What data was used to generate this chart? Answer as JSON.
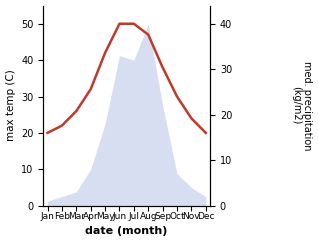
{
  "months": [
    "Jan",
    "Feb",
    "Mar",
    "Apr",
    "May",
    "Jun",
    "Jul",
    "Aug",
    "Sep",
    "Oct",
    "Nov",
    "Dec"
  ],
  "temperature": [
    20,
    22,
    26,
    32,
    42,
    50,
    50,
    47,
    38,
    30,
    24,
    20
  ],
  "precipitation_kg": [
    1,
    2,
    3,
    8,
    18,
    33,
    32,
    40,
    22,
    7,
    4,
    2
  ],
  "temp_color": "#c0392b",
  "precip_fill_color": "#b8c4e8",
  "temp_ylim": [
    0,
    55
  ],
  "precip_ylim": [
    0,
    44
  ],
  "temp_yticks": [
    0,
    10,
    20,
    30,
    40,
    50
  ],
  "precip_yticks": [
    0,
    10,
    20,
    30,
    40
  ],
  "ylabel_left": "max temp (C)",
  "ylabel_right": "med. precipitation\n(kg/m2)",
  "xlabel": "date (month)",
  "bg_color": "#ffffff",
  "temp_linewidth": 1.8,
  "precip_alpha": 0.55
}
